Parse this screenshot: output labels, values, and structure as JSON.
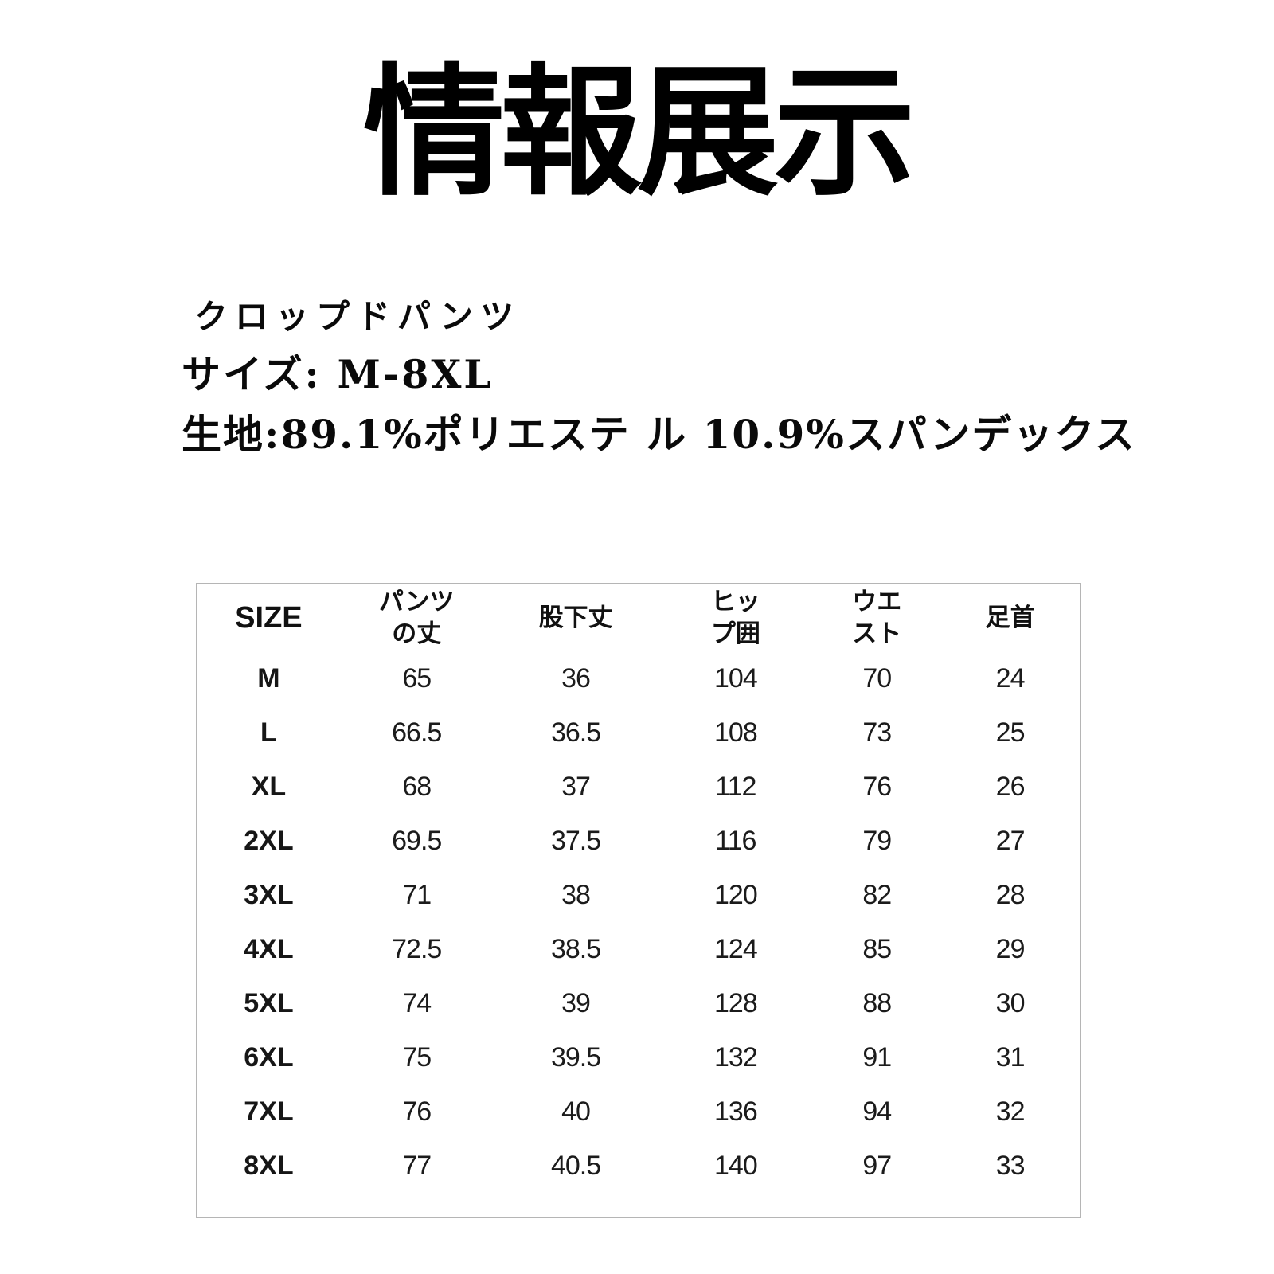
{
  "title": "情報展示",
  "product": {
    "name": "クロップドパンツ",
    "size_range": "サイズ: M-8XL",
    "fabric": "生地:89.1%ポリエステ ル 10.9%スパンデックス"
  },
  "size_table": {
    "columns": [
      "SIZE",
      "パンツ\nの丈",
      "股下丈",
      "ヒッ\nプ囲",
      "ウエ\nスト",
      "足首"
    ],
    "rows": [
      {
        "size": "M",
        "values": [
          "65",
          "36",
          "104",
          "70",
          "24"
        ]
      },
      {
        "size": "L",
        "values": [
          "66.5",
          "36.5",
          "108",
          "73",
          "25"
        ]
      },
      {
        "size": "XL",
        "values": [
          "68",
          "37",
          "112",
          "76",
          "26"
        ]
      },
      {
        "size": "2XL",
        "values": [
          "69.5",
          "37.5",
          "116",
          "79",
          "27"
        ]
      },
      {
        "size": "3XL",
        "values": [
          "71",
          "38",
          "120",
          "82",
          "28"
        ]
      },
      {
        "size": "4XL",
        "values": [
          "72.5",
          "38.5",
          "124",
          "85",
          "29"
        ]
      },
      {
        "size": "5XL",
        "values": [
          "74",
          "39",
          "128",
          "88",
          "30"
        ]
      },
      {
        "size": "6XL",
        "values": [
          "75",
          "39.5",
          "132",
          "91",
          "31"
        ]
      },
      {
        "size": "7XL",
        "values": [
          "76",
          "40",
          "136",
          "94",
          "32"
        ]
      },
      {
        "size": "8XL",
        "values": [
          "77",
          "40.5",
          "140",
          "97",
          "33"
        ]
      }
    ],
    "colors": {
      "border": "#b5b5b5",
      "text": "#1b1b1b",
      "background": "#ffffff"
    }
  }
}
